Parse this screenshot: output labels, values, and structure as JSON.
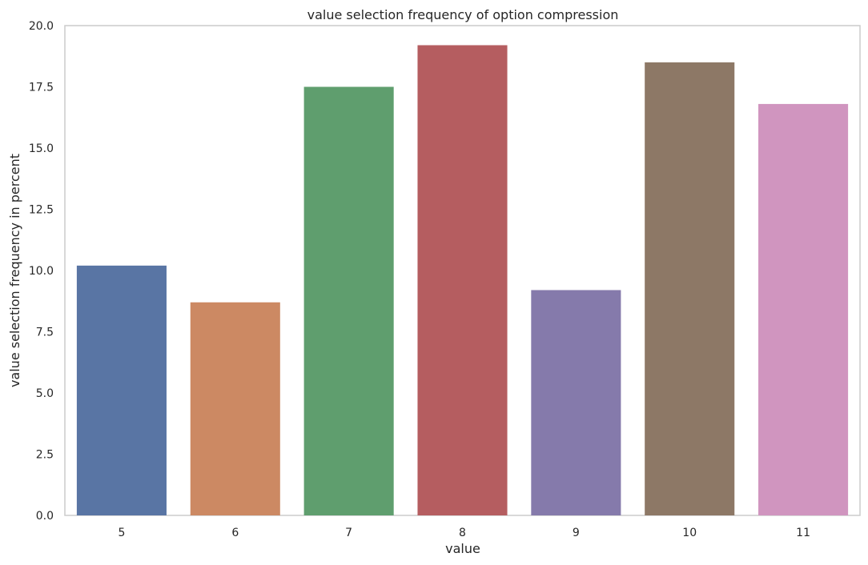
{
  "chart_data": {
    "type": "bar",
    "title": "value selection frequency of option compression",
    "xlabel": "value",
    "ylabel": "value selection frequency in percent",
    "categories": [
      "5",
      "6",
      "7",
      "8",
      "9",
      "10",
      "11"
    ],
    "values": [
      10.2,
      8.7,
      17.5,
      19.2,
      9.2,
      18.5,
      16.8
    ],
    "colors": [
      "#5975a4",
      "#cc8963",
      "#5f9e6e",
      "#b55d60",
      "#857aab",
      "#8d7866",
      "#d095bf"
    ],
    "ylim": [
      0,
      20
    ],
    "yticks": [
      "0.0",
      "2.5",
      "5.0",
      "7.5",
      "10.0",
      "12.5",
      "15.0",
      "17.5",
      "20.0"
    ],
    "grid": false,
    "legend": "none"
  }
}
